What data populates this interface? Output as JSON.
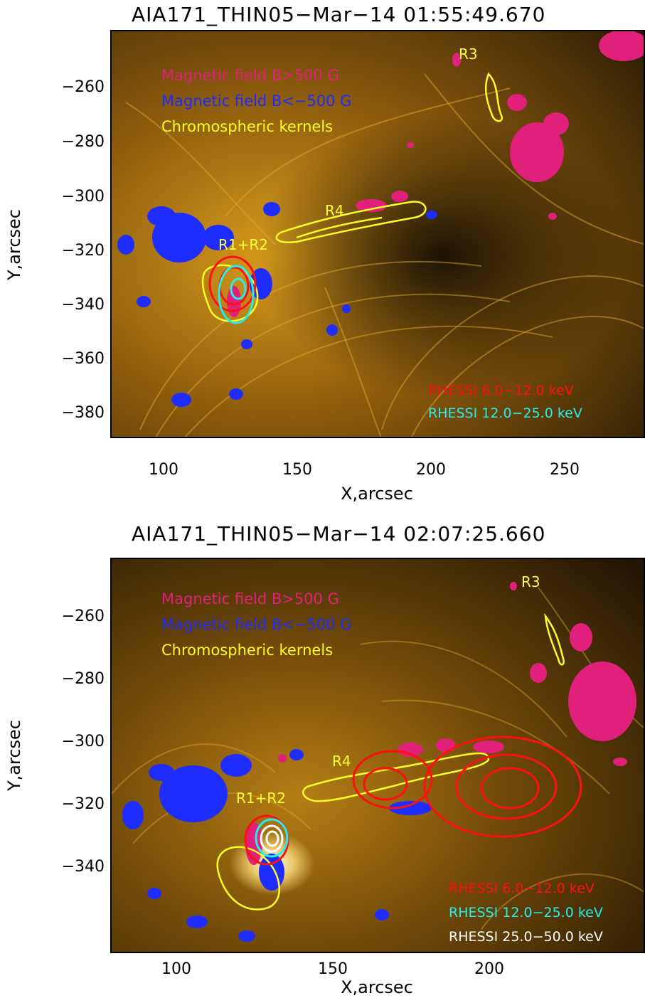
{
  "colors": {
    "positive_field": "#e0207a",
    "negative_field": "#1e2cff",
    "kernels": "#ffff22",
    "rhessi_low": "#ff1010",
    "rhessi_mid": "#22eeee",
    "rhessi_high": "#ffffff",
    "background_dark": "#1a1205",
    "background_gold": "#c48a12"
  },
  "axes": {
    "x_label": "X,arcsec",
    "y_label": "Y,arcsec"
  },
  "panels": [
    {
      "title": "AIA171_THIN05−Mar−14  01:55:49.670",
      "x_ticks": [
        "100",
        "150",
        "200",
        "250"
      ],
      "y_ticks": [
        "−260",
        "−280",
        "−300",
        "−320",
        "−340",
        "−360",
        "−380"
      ],
      "legend": [
        "Magnetic field B>500 G",
        "Magnetic field B<−500 G",
        "Chromospheric kernels"
      ],
      "region_labels": [
        "R3",
        "R4",
        "R1+R2"
      ],
      "rhessi_labels": [
        "RHESSI 6.0−12.0 keV",
        "RHESSI 12.0−25.0 keV"
      ]
    },
    {
      "title": "AIA171_THIN05−Mar−14  02:07:25.660",
      "x_ticks": [
        "100",
        "150",
        "200"
      ],
      "y_ticks": [
        "−260",
        "−280",
        "−300",
        "−320",
        "−340"
      ],
      "legend": [
        "Magnetic field B>500 G",
        "Magnetic field B<−500 G",
        "Chromospheric kernels"
      ],
      "region_labels": [
        "R3",
        "R4",
        "R1+R2"
      ],
      "rhessi_labels": [
        "RHESSI 6.0−12.0 keV",
        "RHESSI 12.0−25.0 keV",
        "RHESSI 25.0−50.0 keV"
      ]
    }
  ]
}
